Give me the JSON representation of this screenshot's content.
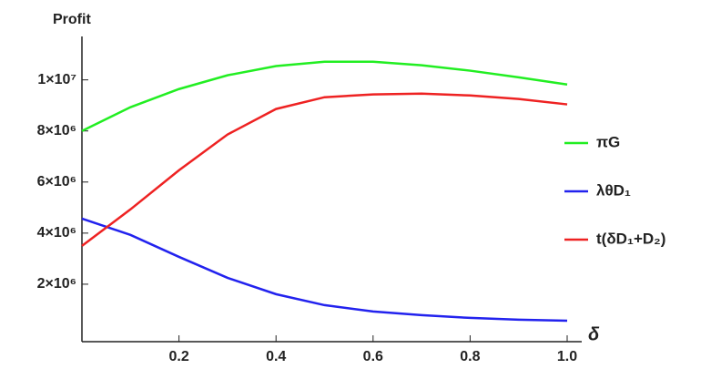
{
  "chart_data": {
    "type": "line",
    "y_label": "Profit",
    "x_label": "δ",
    "x": [
      0,
      0.1,
      0.2,
      0.3,
      0.4,
      0.5,
      0.6,
      0.7,
      0.8,
      0.9,
      1.0
    ],
    "series": [
      {
        "name": "πG",
        "color": "#22ee22",
        "values": [
          8000000,
          8930000,
          9640000,
          10180000,
          10540000,
          10710000,
          10710000,
          10570000,
          10360000,
          10100000,
          9820000
        ]
      },
      {
        "name": "λθD₁",
        "color": "#2222ee",
        "values": [
          4570000,
          3930000,
          3070000,
          2250000,
          1610000,
          1180000,
          930000,
          790000,
          680000,
          610000,
          570000
        ]
      },
      {
        "name": "t(δD₁+D₂)",
        "color": "#ee2222",
        "values": [
          3500000,
          4930000,
          6460000,
          7860000,
          8860000,
          9320000,
          9430000,
          9460000,
          9390000,
          9250000,
          9040000
        ]
      }
    ],
    "xlim": [
      0,
      1.03
    ],
    "ylim": [
      -250000,
      11700000
    ],
    "xticks": [
      0.2,
      0.4,
      0.6,
      0.8,
      {
        "value": 1,
        "label": "1.0"
      }
    ],
    "yticks": [
      {
        "value": 2000000,
        "label": "2×10⁶"
      },
      {
        "value": 4000000,
        "label": "4×10⁶"
      },
      {
        "value": 6000000,
        "label": "6×10⁶"
      },
      {
        "value": 8000000,
        "label": "8×10⁶"
      },
      {
        "value": 10000000,
        "label": "1×10⁷"
      }
    ],
    "grid": false,
    "legend": "right"
  }
}
